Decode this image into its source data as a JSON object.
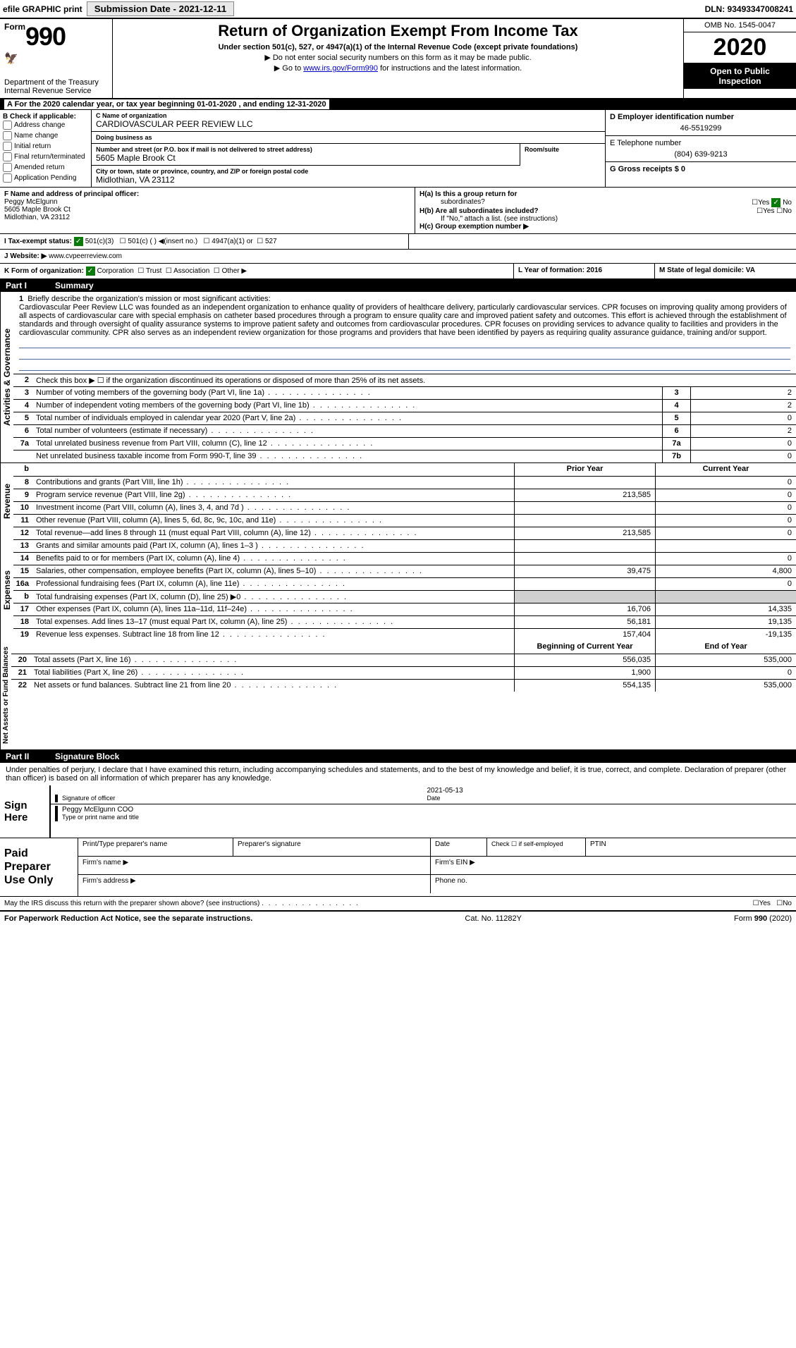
{
  "colors": {
    "black": "#000000",
    "white": "#ffffff",
    "link": "#0000cc",
    "checked_green": "#0a7a0a",
    "shaded": "#d0d0d0",
    "rule_blue": "#4a6aa0"
  },
  "top_bar": {
    "efile": "efile GRAPHIC print",
    "submission_label": "Submission Date - 2021-12-11",
    "dln": "DLN: 93493347008241"
  },
  "header": {
    "form_word": "Form",
    "form_num": "990",
    "title": "Return of Organization Exempt From Income Tax",
    "subtitle": "Under section 501(c), 527, or 4947(a)(1) of the Internal Revenue Code (except private foundations)",
    "note1": "▶ Do not enter social security numbers on this form as it may be made public.",
    "note2_pre": "▶ Go to ",
    "note2_link": "www.irs.gov/Form990",
    "note2_post": " for instructions and the latest information.",
    "dept": "Department of the Treasury",
    "irs": "Internal Revenue Service",
    "omb": "OMB No. 1545-0047",
    "year": "2020",
    "inspection1": "Open to Public",
    "inspection2": "Inspection"
  },
  "period": "A For the 2020 calendar year, or tax year beginning 01-01-2020    , and ending 12-31-2020",
  "section_b": {
    "b_label": "B Check if applicable:",
    "checks": [
      "Address change",
      "Name change",
      "Initial return",
      "Final return/terminated",
      "Amended return",
      "Application Pending"
    ],
    "c_label": "C Name of organization",
    "org_name": "CARDIOVASCULAR PEER REVIEW LLC",
    "dba_label": "Doing business as",
    "dba": "",
    "addr_label": "Number and street (or P.O. box if mail is not delivered to street address)",
    "addr": "5605 Maple Brook Ct",
    "room_label": "Room/suite",
    "city_label": "City or town, state or province, country, and ZIP or foreign postal code",
    "city": "Midlothian, VA  23112",
    "d_label": "D Employer identification number",
    "ein": "46-5519299",
    "e_label": "E Telephone number",
    "phone": "(804) 639-9213",
    "g_label": "G Gross receipts $ 0"
  },
  "section_f": {
    "label": "F  Name and address of principal officer:",
    "name": "Peggy McElgunn",
    "addr1": "5605 Maple Brook Ct",
    "addr2": "Midlothian, VA  23112"
  },
  "section_h": {
    "ha_label": "H(a)  Is this a group return for",
    "ha_sub": "subordinates?",
    "hb_label": "H(b)  Are all subordinates included?",
    "hb_note": "If \"No,\" attach a list. (see instructions)",
    "hc_label": "H(c)  Group exemption number ▶",
    "yes": "Yes",
    "no": "No"
  },
  "section_i": {
    "label": "I    Tax-exempt status:",
    "opt1": "501(c)(3)",
    "opt2": "501(c) (  ) ◀(insert no.)",
    "opt3": "4947(a)(1) or",
    "opt4": "527"
  },
  "section_j": {
    "label": "J   Website: ▶",
    "value": "www.cvpeerreview.com"
  },
  "section_k": {
    "label": "K Form of organization:",
    "corp": "Corporation",
    "trust": "Trust",
    "assoc": "Association",
    "other": "Other ▶"
  },
  "section_l": {
    "label": "L Year of formation: 2016"
  },
  "section_m": {
    "label": "M State of legal domicile: VA"
  },
  "part1": {
    "header_part": "Part I",
    "header_title": "Summary",
    "vert_gov": "Activities & Governance",
    "vert_rev": "Revenue",
    "vert_exp": "Expenses",
    "vert_net": "Net Assets or Fund Balances",
    "line1_lbl": "1",
    "line1": "Briefly describe the organization's mission or most significant activities:",
    "mission": "Cardiovascular Peer Review LLC was founded as an independent organization to enhance quality of providers of healthcare delivery, particularly cardiovascular services. CPR focuses on improving quality among providers of all aspects of cardiovascular care with special emphasis on catheter based procedures through a program to ensure quality care and improved patient safety and outcomes. This effort is achieved through the establishment of standards and through oversight of quality assurance systems to improve patient safety and outcomes from cardiovascular procedures. CPR focuses on providing services to advance quality to facilities and providers in the cardiovascular community. CPR also serves as an independent review organization for those programs and providers that have been identified by payers as requiring quality assurance guidance, training and/or support.",
    "line2_lbl": "2",
    "line2": "Check this box ▶ ☐  if the organization discontinued its operations or disposed of more than 25% of its net assets.",
    "rows_small": [
      {
        "n": "3",
        "desc": "Number of voting members of the governing body (Part VI, line 1a)",
        "box": "3",
        "val": "2"
      },
      {
        "n": "4",
        "desc": "Number of independent voting members of the governing body (Part VI, line 1b)",
        "box": "4",
        "val": "2"
      },
      {
        "n": "5",
        "desc": "Total number of individuals employed in calendar year 2020 (Part V, line 2a)",
        "box": "5",
        "val": "0"
      },
      {
        "n": "6",
        "desc": "Total number of volunteers (estimate if necessary)",
        "box": "6",
        "val": "2"
      },
      {
        "n": "7a",
        "desc": "Total unrelated business revenue from Part VIII, column (C), line 12",
        "box": "7a",
        "val": "0"
      },
      {
        "n": "",
        "desc": "Net unrelated business taxable income from Form 990-T, line 39",
        "box": "7b",
        "val": "0"
      }
    ],
    "col_prior": "Prior Year",
    "col_current": "Current Year",
    "col_begin": "Beginning of Current Year",
    "col_end": "End of Year",
    "revenue_rows": [
      {
        "n": "8",
        "desc": "Contributions and grants (Part VIII, line 1h)",
        "p": "",
        "c": "0"
      },
      {
        "n": "9",
        "desc": "Program service revenue (Part VIII, line 2g)",
        "p": "213,585",
        "c": "0"
      },
      {
        "n": "10",
        "desc": "Investment income (Part VIII, column (A), lines 3, 4, and 7d )",
        "p": "",
        "c": "0"
      },
      {
        "n": "11",
        "desc": "Other revenue (Part VIII, column (A), lines 5, 6d, 8c, 9c, 10c, and 11e)",
        "p": "",
        "c": "0"
      },
      {
        "n": "12",
        "desc": "Total revenue—add lines 8 through 11 (must equal Part VIII, column (A), line 12)",
        "p": "213,585",
        "c": "0"
      }
    ],
    "expense_rows": [
      {
        "n": "13",
        "desc": "Grants and similar amounts paid (Part IX, column (A), lines 1–3 )",
        "p": "",
        "c": ""
      },
      {
        "n": "14",
        "desc": "Benefits paid to or for members (Part IX, column (A), line 4)",
        "p": "",
        "c": "0"
      },
      {
        "n": "15",
        "desc": "Salaries, other compensation, employee benefits (Part IX, column (A), lines 5–10)",
        "p": "39,475",
        "c": "4,800"
      },
      {
        "n": "16a",
        "desc": "Professional fundraising fees (Part IX, column (A), line 11e)",
        "p": "",
        "c": "0"
      },
      {
        "n": "b",
        "desc": "Total fundraising expenses (Part IX, column (D), line 25) ▶0",
        "p": "SHADED",
        "c": "SHADED"
      },
      {
        "n": "17",
        "desc": "Other expenses (Part IX, column (A), lines 11a–11d, 11f–24e)",
        "p": "16,706",
        "c": "14,335"
      },
      {
        "n": "18",
        "desc": "Total expenses. Add lines 13–17 (must equal Part IX, column (A), line 25)",
        "p": "56,181",
        "c": "19,135"
      },
      {
        "n": "19",
        "desc": "Revenue less expenses. Subtract line 18 from line 12",
        "p": "157,404",
        "c": "-19,135"
      }
    ],
    "net_rows": [
      {
        "n": "20",
        "desc": "Total assets (Part X, line 16)",
        "p": "556,035",
        "c": "535,000"
      },
      {
        "n": "21",
        "desc": "Total liabilities (Part X, line 26)",
        "p": "1,900",
        "c": "0"
      },
      {
        "n": "22",
        "desc": "Net assets or fund balances. Subtract line 21 from line 20",
        "p": "554,135",
        "c": "535,000"
      }
    ]
  },
  "part2": {
    "header_part": "Part II",
    "header_title": "Signature Block",
    "decl": "Under penalties of perjury, I declare that I have examined this return, including accompanying schedules and statements, and to the best of my knowledge and belief, it is true, correct, and complete. Declaration of preparer (other than officer) is based on all information of which preparer has any knowledge.",
    "sign_here": "Sign Here",
    "sig_officer": "Signature of officer",
    "sig_date": "Date",
    "sig_date_val": "2021-05-13",
    "sig_name": "Peggy McElgunn COO",
    "sig_type": "Type or print name and title",
    "paid": "Paid Preparer Use Only",
    "prep_name": "Print/Type preparer's name",
    "prep_sig": "Preparer's signature",
    "prep_date": "Date",
    "prep_check": "Check ☐ if self-employed",
    "ptin": "PTIN",
    "firm_name": "Firm's name    ▶",
    "firm_ein": "Firm's EIN ▶",
    "firm_addr": "Firm's address ▶",
    "phone": "Phone no.",
    "discuss": "May the IRS discuss this return with the preparer shown above? (see instructions)",
    "yes": "Yes",
    "no": "No"
  },
  "footer": {
    "left": "For Paperwork Reduction Act Notice, see the separate instructions.",
    "mid": "Cat. No. 11282Y",
    "right": "Form 990 (2020)"
  }
}
